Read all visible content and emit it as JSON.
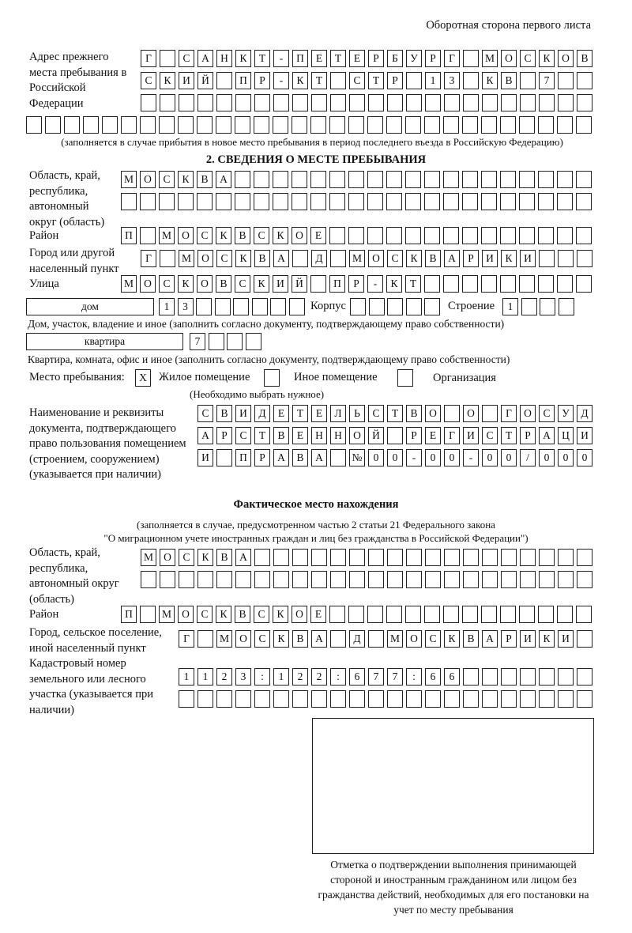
{
  "header": "Оборотная сторона первого листа",
  "previous_address": {
    "label": "Адрес прежнего места пребывания в Российской Федерации",
    "rows": [
      "Г САНКТ-ПЕТЕРБУРГ МОСКОВ",
      "СКИЙ ПР-КТ СТР 13 КВ 7",
      "",
      ""
    ],
    "note": "(заполняется в случае прибытия в новое место пребывания в период последнего въезда в Российскую Федерацию)"
  },
  "section2": {
    "title": "2. СВЕДЕНИЯ О МЕСТЕ ПРЕБЫВАНИЯ",
    "region_label": "Область, край, республика, автономный округ (область)",
    "region_rows": [
      "МОСКВА",
      ""
    ],
    "district_label": "Район",
    "district": "П МОСКВСКОЕ",
    "city_label": "Город или другой населенный пункт",
    "city": "Г МОСКВА Д МОСКВАРИКИ",
    "street_label": "Улица",
    "street": "МОСКОВСКИЙ ПР-КТ",
    "house_type": "дом",
    "house": "13",
    "korpus_label": "Корпус",
    "korpus": "",
    "building_label": "Строение",
    "building": "1",
    "house_note": "Дом, участок, владение и иное (заполнить согласно документу, подтверждающему право собственности)",
    "apt_type": "квартира",
    "apt": "7",
    "apt_note": "Квартира, комната, офис и иное (заполнить согласно документу, подтверждающему право собственности)",
    "place_label": "Место пребывания:",
    "place_options": [
      {
        "label": "Жилое помещение",
        "mark": "X",
        "checked": true
      },
      {
        "label": "Иное помещение",
        "mark": "",
        "checked": false
      },
      {
        "label": "Организация",
        "mark": "",
        "checked": false
      }
    ],
    "place_note": "(Необходимо выбрать нужное)",
    "doc_label": "Наименование и реквизиты документа, подтверждающего право пользования помещением (строением, сооружением) (указывается при наличии)",
    "doc_rows": [
      "СВИДЕТЕЛЬСТВО О ГОСУД",
      "АРСТВЕННОЙ РЕГИСТРАЦИ",
      "И ПРАВА №00-00-00/000"
    ]
  },
  "actual": {
    "title": "Фактическое место нахождения",
    "note1": "(заполняется в случае, предусмотренном частью 2 статьи 21 Федерального закона",
    "note2": "\"О миграционном учете иностранных граждан и лиц без гражданства в Российской Федерации\")",
    "region_label": "Область, край, республика, автономный округ (область)",
    "region_rows": [
      "МОСКВА",
      ""
    ],
    "district_label": "Район",
    "district": "П МОСКВСКОЕ",
    "city_label": "Город, сельское поселение, иной населенный пункт",
    "city": "Г МОСКВА Д МОСКВАРИКИ",
    "cadastral_label": "Кадастровый номер земельного или лесного участка (указывается при наличии)",
    "cadastral_rows": [
      "1123:122:677:66",
      ""
    ]
  },
  "stamp": {
    "caption": "Отметка о подтверждении выполнения принимающей стороной и иностранным гражданином или лицом без гражданства действий, необходимых для его постановки на учет по месту пребывания"
  }
}
